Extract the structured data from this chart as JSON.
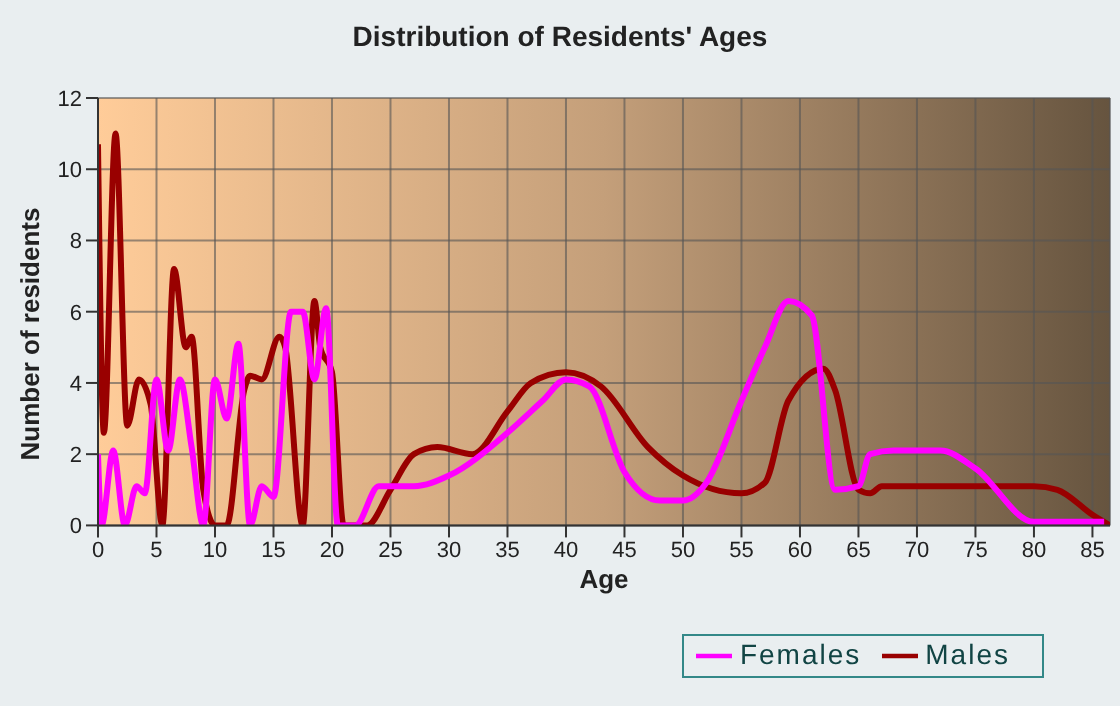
{
  "chart_data": {
    "type": "line",
    "title": "Distribution of Residents' Ages",
    "xlabel": "Age",
    "ylabel": "Number of residents",
    "xlim": [
      0,
      86.5
    ],
    "xticks": [
      0,
      5,
      10,
      15,
      20,
      25,
      30,
      35,
      40,
      45,
      50,
      55,
      60,
      65,
      70,
      75,
      80,
      85
    ],
    "ylim": [
      0,
      12
    ],
    "yticks": [
      0,
      2,
      4,
      6,
      8,
      10,
      12
    ],
    "grid": true,
    "legend": "bottom right",
    "marker": "none",
    "line_style": "solid",
    "series": [
      {
        "name": "Males",
        "color": "#990000",
        "x": [
          0,
          0.5,
          1.5,
          2.5,
          3.5,
          4.5,
          5.5,
          6.5,
          7.5,
          8,
          9,
          10,
          11,
          12.5,
          13,
          14,
          15.5,
          16,
          17.5,
          18.5,
          19,
          20,
          21,
          22,
          23,
          25,
          27,
          29,
          32,
          35,
          37,
          40,
          43,
          47,
          50,
          55,
          57,
          59,
          62,
          63,
          65,
          66,
          67,
          70,
          75,
          80,
          82,
          85,
          86.5
        ],
        "values": [
          10.7,
          2.6,
          11,
          2.8,
          4.1,
          3.4,
          0,
          7.2,
          5,
          5.3,
          1,
          0,
          0,
          3.8,
          4.2,
          4.1,
          5.3,
          5,
          0,
          6.3,
          5,
          4.3,
          0,
          0,
          0,
          1,
          2,
          2.2,
          2,
          3.2,
          4,
          4.3,
          3.9,
          2.2,
          1.4,
          0.9,
          1.2,
          3.5,
          4.4,
          3.8,
          1,
          0.9,
          1.1,
          1.1,
          1.1,
          1.1,
          1,
          0.3,
          0
        ]
      },
      {
        "name": "Females",
        "color": "#ff00ff",
        "x": [
          0,
          0.3,
          1.3,
          2.3,
          3.3,
          4,
          5,
          6,
          7,
          8,
          9,
          10,
          11,
          12,
          13,
          14,
          15,
          16.5,
          17.5,
          18.5,
          19.5,
          20.5,
          22,
          24,
          27,
          30,
          35,
          38,
          40,
          42,
          45,
          48,
          50,
          52,
          55,
          57,
          59,
          61,
          63,
          65,
          66,
          68,
          72,
          75,
          80,
          86
        ],
        "values": [
          2,
          0,
          2.1,
          0,
          1.1,
          0.9,
          4.1,
          2.1,
          4.1,
          2.2,
          0,
          4.1,
          3,
          5.1,
          0,
          1.1,
          0.8,
          6,
          6,
          4.1,
          6.1,
          0,
          0,
          1.1,
          1.1,
          1.4,
          2.6,
          3.5,
          4.1,
          3.9,
          1.5,
          0.7,
          0.7,
          1.2,
          3.5,
          5,
          6.3,
          5.9,
          1,
          1.1,
          2,
          2.1,
          2.1,
          1.6,
          0.1,
          0.1
        ]
      }
    ]
  }
}
